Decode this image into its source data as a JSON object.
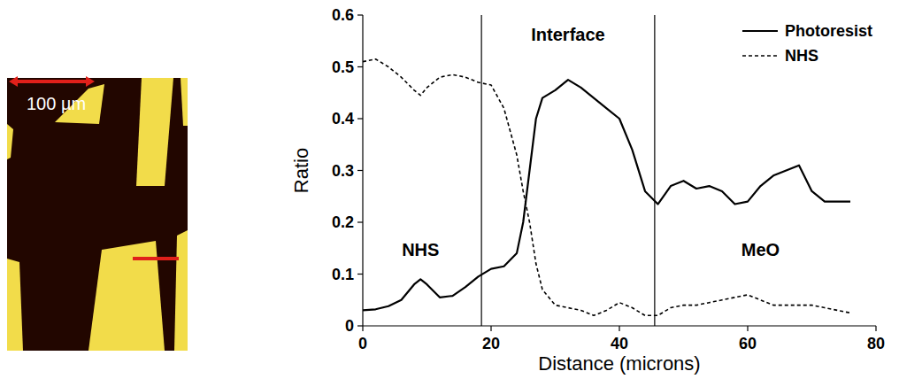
{
  "micrograph": {
    "scale_bar_label": "100 µm"
  },
  "chart_data": {
    "type": "line",
    "x_label": "Distance (microns)",
    "y_label": "Ratio",
    "x": [
      0,
      2,
      4,
      6,
      8,
      9,
      10,
      12,
      14,
      16,
      18,
      20,
      22,
      24,
      25,
      26,
      27,
      28,
      30,
      32,
      34,
      36,
      38,
      40,
      42,
      44,
      46,
      48,
      50,
      52,
      54,
      56,
      58,
      60,
      62,
      64,
      66,
      68,
      70,
      72,
      74,
      76
    ],
    "series": [
      {
        "name": "Photoresist",
        "color": "#000000",
        "line_style": "solid",
        "values": [
          0.03,
          0.032,
          0.038,
          0.05,
          0.08,
          0.09,
          0.08,
          0.055,
          0.058,
          0.075,
          0.095,
          0.11,
          0.115,
          0.14,
          0.2,
          0.3,
          0.4,
          0.44,
          0.455,
          0.475,
          0.46,
          0.44,
          0.42,
          0.4,
          0.34,
          0.26,
          0.235,
          0.27,
          0.28,
          0.265,
          0.27,
          0.26,
          0.235,
          0.24,
          0.27,
          0.29,
          0.3,
          0.31,
          0.26,
          0.24,
          0.24,
          0.24
        ]
      },
      {
        "name": "NHS",
        "color": "#000000",
        "line_style": "dashed",
        "values": [
          0.51,
          0.515,
          0.5,
          0.48,
          0.455,
          0.445,
          0.46,
          0.48,
          0.485,
          0.48,
          0.47,
          0.465,
          0.42,
          0.33,
          0.26,
          0.2,
          0.12,
          0.07,
          0.04,
          0.035,
          0.03,
          0.02,
          0.03,
          0.045,
          0.035,
          0.02,
          0.02,
          0.035,
          0.04,
          0.04,
          0.045,
          0.05,
          0.055,
          0.06,
          0.05,
          0.04,
          0.04,
          0.04,
          0.04,
          0.035,
          0.03,
          0.025
        ]
      }
    ],
    "xlim": [
      0,
      80
    ],
    "xticks": [
      0,
      20,
      40,
      60,
      80
    ],
    "ylim": [
      0,
      0.6
    ],
    "yticks": [
      0,
      0.1,
      0.2,
      0.3,
      0.4,
      0.5,
      0.6
    ],
    "legend": "top-right",
    "vlines": [
      18.5,
      45.5
    ],
    "annotations": [
      {
        "text": "NHS",
        "x": 9,
        "y": 0.135
      },
      {
        "text": "Interface",
        "x": 32,
        "y": 0.55
      },
      {
        "text": "MeO",
        "x": 62,
        "y": 0.135
      }
    ]
  }
}
